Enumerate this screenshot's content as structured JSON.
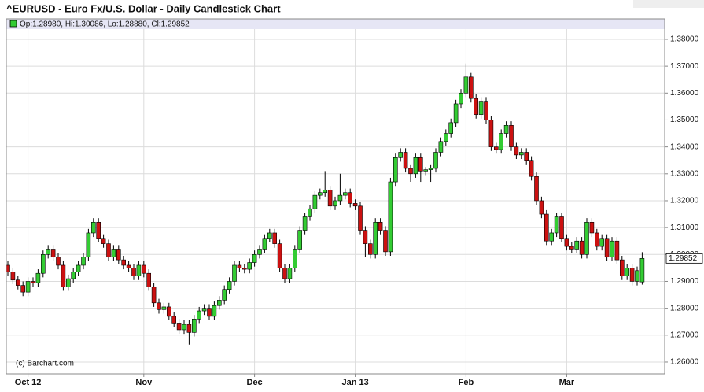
{
  "chart_data": {
    "type": "candlestick",
    "title": "^EURUSD - Euro Fx/U.S. Dollar - Daily Candlestick Chart",
    "legend_text": "Op:1.28980, Hi:1.30086, Lo:1.28880, Cl:1.29852",
    "credit": "(c) Barchart.com",
    "last_label": "1.29852",
    "up_color": "#33cc33",
    "down_color": "#cc1111",
    "grid": true,
    "ylim": [
      1.2556,
      1.3876
    ],
    "yticks": [
      {
        "value": 1.26,
        "label": "1.26000"
      },
      {
        "value": 1.27,
        "label": "1.27000"
      },
      {
        "value": 1.28,
        "label": "1.28000"
      },
      {
        "value": 1.29,
        "label": "1.29000"
      },
      {
        "value": 1.3,
        "label": "1.30000"
      },
      {
        "value": 1.31,
        "label": "1.31000"
      },
      {
        "value": 1.32,
        "label": "1.32000"
      },
      {
        "value": 1.33,
        "label": "1.33000"
      },
      {
        "value": 1.34,
        "label": "1.34000"
      },
      {
        "value": 1.35,
        "label": "1.35000"
      },
      {
        "value": 1.36,
        "label": "1.36000"
      },
      {
        "value": 1.37,
        "label": "1.37000"
      },
      {
        "value": 1.38,
        "label": "1.38000"
      }
    ],
    "categories": [
      null,
      null,
      null,
      null,
      "Oct 12",
      null,
      null,
      null,
      null,
      null,
      null,
      null,
      null,
      null,
      null,
      null,
      null,
      null,
      null,
      null,
      null,
      null,
      null,
      null,
      null,
      null,
      null,
      "Nov",
      null,
      null,
      null,
      null,
      null,
      null,
      null,
      null,
      null,
      null,
      null,
      null,
      null,
      null,
      null,
      null,
      null,
      null,
      null,
      null,
      null,
      "Dec",
      null,
      null,
      null,
      null,
      null,
      null,
      null,
      null,
      null,
      null,
      null,
      null,
      null,
      null,
      null,
      null,
      null,
      null,
      null,
      "Jan 13",
      null,
      null,
      null,
      null,
      null,
      null,
      null,
      null,
      null,
      null,
      null,
      null,
      null,
      null,
      null,
      null,
      null,
      null,
      null,
      null,
      null,
      "Feb",
      null,
      null,
      null,
      null,
      null,
      null,
      null,
      null,
      null,
      null,
      null,
      null,
      null,
      null,
      null,
      null,
      null,
      null,
      null,
      "Mar",
      null,
      null,
      null,
      null,
      null,
      null,
      null,
      null,
      null,
      null,
      null,
      null,
      null,
      null,
      null
    ],
    "open": [
      1.296,
      1.2935,
      1.2905,
      1.2885,
      1.286,
      1.29,
      1.2895,
      1.293,
      1.3,
      1.302,
      1.299,
      1.296,
      1.288,
      1.291,
      1.2935,
      1.296,
      1.299,
      1.308,
      1.312,
      1.306,
      1.304,
      1.299,
      1.302,
      1.298,
      1.296,
      1.295,
      1.292,
      1.296,
      1.293,
      1.288,
      1.282,
      1.2795,
      1.2805,
      1.277,
      1.2745,
      1.272,
      1.274,
      1.271,
      1.276,
      1.279,
      1.28,
      1.277,
      1.281,
      1.283,
      1.287,
      1.29,
      1.296,
      1.295,
      1.2945,
      1.297,
      1.3,
      1.302,
      1.306,
      1.308,
      1.304,
      1.295,
      1.291,
      1.295,
      1.302,
      1.309,
      1.314,
      1.317,
      1.322,
      1.323,
      1.324,
      1.318,
      1.32,
      1.322,
      1.323,
      1.319,
      1.318,
      1.309,
      1.304,
      1.3,
      1.312,
      1.309,
      1.301,
      1.327,
      1.336,
      1.338,
      1.332,
      1.33,
      1.336,
      1.331,
      1.3315,
      1.332,
      1.338,
      1.342,
      1.345,
      1.349,
      1.356,
      1.36,
      1.366,
      1.358,
      1.352,
      1.357,
      1.35,
      1.34,
      1.339,
      1.345,
      1.348,
      1.34,
      1.337,
      1.338,
      1.335,
      1.329,
      1.32,
      1.315,
      1.305,
      1.308,
      1.314,
      1.306,
      1.303,
      1.302,
      1.305,
      1.3,
      1.312,
      1.308,
      1.303,
      1.306,
      1.299,
      1.305,
      1.298,
      1.292,
      1.295,
      1.29,
      1.2898
    ],
    "high": [
      1.2975,
      1.295,
      1.292,
      1.29,
      1.2915,
      1.2915,
      1.2945,
      1.3015,
      1.3035,
      1.3035,
      1.3005,
      1.2975,
      1.2925,
      1.295,
      1.2975,
      1.3005,
      1.3095,
      1.3135,
      1.3135,
      1.3075,
      1.3055,
      1.3035,
      1.3035,
      1.2995,
      1.2975,
      1.2965,
      1.2975,
      1.2975,
      1.2945,
      1.2895,
      1.2835,
      1.282,
      1.282,
      1.2785,
      1.276,
      1.2755,
      1.2755,
      1.2775,
      1.2805,
      1.2815,
      1.2815,
      1.2825,
      1.2845,
      1.2885,
      1.2915,
      1.2975,
      1.2975,
      1.2965,
      1.2985,
      1.3015,
      1.3035,
      1.3075,
      1.3095,
      1.3095,
      1.3055,
      1.2965,
      1.2965,
      1.3035,
      1.3105,
      1.3155,
      1.3185,
      1.3235,
      1.3245,
      1.331,
      1.3255,
      1.3215,
      1.33,
      1.3245,
      1.3245,
      1.3205,
      1.3195,
      1.3105,
      1.3055,
      1.3135,
      1.3135,
      1.3105,
      1.3285,
      1.3375,
      1.3395,
      1.3395,
      1.3335,
      1.3375,
      1.3375,
      1.3325,
      1.3335,
      1.3395,
      1.3435,
      1.3465,
      1.3505,
      1.3575,
      1.3615,
      1.371,
      1.3675,
      1.3595,
      1.3585,
      1.3585,
      1.3515,
      1.3415,
      1.3465,
      1.3495,
      1.3495,
      1.3415,
      1.3395,
      1.3395,
      1.3365,
      1.3305,
      1.3215,
      1.3165,
      1.3095,
      1.3155,
      1.3155,
      1.3075,
      1.3045,
      1.3065,
      1.3065,
      1.3135,
      1.3135,
      1.3095,
      1.3075,
      1.3075,
      1.3065,
      1.3065,
      1.2995,
      1.2965,
      1.2965,
      1.2955,
      1.30086
    ],
    "low": [
      1.292,
      1.289,
      1.287,
      1.2845,
      1.2845,
      1.288,
      1.288,
      1.2915,
      1.2985,
      1.2975,
      1.2945,
      1.2865,
      1.2865,
      1.2895,
      1.292,
      1.2945,
      1.2975,
      1.3065,
      1.3045,
      1.3025,
      1.2975,
      1.2975,
      1.2965,
      1.2945,
      1.2935,
      1.2905,
      1.2905,
      1.2915,
      1.2865,
      1.2805,
      1.278,
      1.278,
      1.2755,
      1.273,
      1.2705,
      1.2705,
      1.2665,
      1.2695,
      1.2745,
      1.2775,
      1.2755,
      1.2755,
      1.2795,
      1.2815,
      1.2855,
      1.2885,
      1.2935,
      1.293,
      1.293,
      1.2955,
      1.2985,
      1.3005,
      1.3045,
      1.3025,
      1.2935,
      1.2895,
      1.2895,
      1.2935,
      1.3005,
      1.3075,
      1.3125,
      1.3155,
      1.3205,
      1.3215,
      1.3165,
      1.3165,
      1.3185,
      1.3205,
      1.3175,
      1.3165,
      1.3075,
      1.299,
      1.2985,
      1.2985,
      1.3075,
      1.2995,
      1.2995,
      1.3255,
      1.3345,
      1.3305,
      1.327,
      1.3285,
      1.327,
      1.3295,
      1.327,
      1.3305,
      1.3365,
      1.3405,
      1.3435,
      1.3475,
      1.3545,
      1.3585,
      1.3565,
      1.3505,
      1.3505,
      1.3485,
      1.3385,
      1.3375,
      1.3375,
      1.3435,
      1.3385,
      1.3355,
      1.3355,
      1.3335,
      1.3275,
      1.3185,
      1.3135,
      1.3035,
      1.3035,
      1.3065,
      1.3045,
      1.3015,
      1.3005,
      1.3005,
      1.2985,
      1.2985,
      1.3065,
      1.3015,
      1.3015,
      1.2975,
      1.2975,
      1.2965,
      1.2905,
      1.2905,
      1.2885,
      1.2885,
      1.2888
    ],
    "close": [
      1.2935,
      1.2905,
      1.2885,
      1.286,
      1.29,
      1.2895,
      1.293,
      1.3,
      1.302,
      1.299,
      1.296,
      1.288,
      1.291,
      1.2935,
      1.296,
      1.299,
      1.308,
      1.312,
      1.306,
      1.304,
      1.299,
      1.302,
      1.298,
      1.296,
      1.295,
      1.292,
      1.296,
      1.293,
      1.288,
      1.282,
      1.2795,
      1.2805,
      1.277,
      1.2745,
      1.272,
      1.274,
      1.271,
      1.276,
      1.279,
      1.28,
      1.277,
      1.281,
      1.283,
      1.287,
      1.29,
      1.296,
      1.295,
      1.2945,
      1.297,
      1.3,
      1.302,
      1.306,
      1.308,
      1.304,
      1.295,
      1.291,
      1.295,
      1.302,
      1.309,
      1.314,
      1.317,
      1.322,
      1.323,
      1.324,
      1.318,
      1.32,
      1.322,
      1.323,
      1.319,
      1.318,
      1.309,
      1.304,
      1.3,
      1.312,
      1.309,
      1.301,
      1.327,
      1.336,
      1.338,
      1.332,
      1.33,
      1.336,
      1.331,
      1.3315,
      1.332,
      1.338,
      1.342,
      1.345,
      1.349,
      1.356,
      1.36,
      1.366,
      1.358,
      1.352,
      1.357,
      1.35,
      1.34,
      1.339,
      1.345,
      1.348,
      1.34,
      1.337,
      1.338,
      1.335,
      1.329,
      1.32,
      1.315,
      1.305,
      1.308,
      1.314,
      1.306,
      1.303,
      1.302,
      1.305,
      1.3,
      1.312,
      1.308,
      1.303,
      1.306,
      1.299,
      1.305,
      1.298,
      1.292,
      1.295,
      1.29,
      1.294,
      1.29852
    ]
  }
}
